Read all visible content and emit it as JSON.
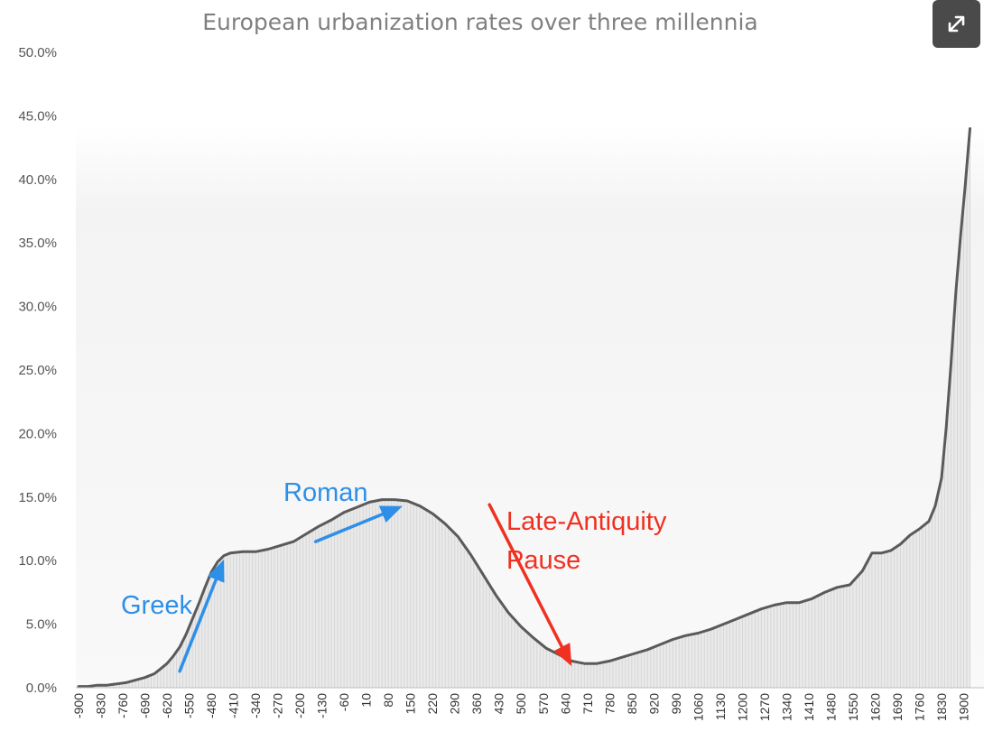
{
  "chart_data": {
    "type": "area",
    "title": "European urbanization rates over three millennia",
    "xlabel": "",
    "ylabel": "",
    "x_range": [
      -900,
      1950
    ],
    "x_step": 10,
    "xticks": [
      -900,
      -830,
      -760,
      -690,
      -620,
      -550,
      -480,
      -410,
      -340,
      -270,
      -200,
      -130,
      -60,
      10,
      80,
      150,
      220,
      290,
      360,
      430,
      500,
      570,
      640,
      710,
      780,
      850,
      920,
      990,
      1060,
      1130,
      1200,
      1270,
      1340,
      1410,
      1480,
      1550,
      1620,
      1690,
      1760,
      1830,
      1900
    ],
    "yticks": [
      "0.0%",
      "5.0%",
      "10.0%",
      "15.0%",
      "20.0%",
      "25.0%",
      "30.0%",
      "35.0%",
      "40.0%",
      "45.0%",
      "50.0%"
    ],
    "ylim": [
      0,
      50
    ],
    "grid": false,
    "legend": "none",
    "series": [
      {
        "points": [
          [
            -900,
            0.1
          ],
          [
            -870,
            0.1
          ],
          [
            -840,
            0.2
          ],
          [
            -810,
            0.2
          ],
          [
            -780,
            0.3
          ],
          [
            -750,
            0.4
          ],
          [
            -720,
            0.6
          ],
          [
            -690,
            0.8
          ],
          [
            -660,
            1.1
          ],
          [
            -640,
            1.5
          ],
          [
            -620,
            1.9
          ],
          [
            -600,
            2.5
          ],
          [
            -580,
            3.2
          ],
          [
            -560,
            4.2
          ],
          [
            -540,
            5.4
          ],
          [
            -520,
            6.6
          ],
          [
            -500,
            7.9
          ],
          [
            -480,
            9.1
          ],
          [
            -460,
            9.9
          ],
          [
            -440,
            10.4
          ],
          [
            -420,
            10.6
          ],
          [
            -380,
            10.7
          ],
          [
            -340,
            10.7
          ],
          [
            -300,
            10.9
          ],
          [
            -260,
            11.2
          ],
          [
            -220,
            11.5
          ],
          [
            -180,
            12.1
          ],
          [
            -140,
            12.7
          ],
          [
            -100,
            13.2
          ],
          [
            -60,
            13.8
          ],
          [
            -20,
            14.2
          ],
          [
            20,
            14.6
          ],
          [
            60,
            14.8
          ],
          [
            100,
            14.8
          ],
          [
            140,
            14.7
          ],
          [
            180,
            14.3
          ],
          [
            220,
            13.7
          ],
          [
            260,
            12.9
          ],
          [
            300,
            11.9
          ],
          [
            340,
            10.5
          ],
          [
            380,
            8.9
          ],
          [
            420,
            7.3
          ],
          [
            460,
            5.9
          ],
          [
            500,
            4.8
          ],
          [
            540,
            3.9
          ],
          [
            580,
            3.1
          ],
          [
            620,
            2.6
          ],
          [
            660,
            2.1
          ],
          [
            700,
            1.9
          ],
          [
            740,
            1.9
          ],
          [
            780,
            2.1
          ],
          [
            820,
            2.4
          ],
          [
            860,
            2.7
          ],
          [
            900,
            3.0
          ],
          [
            940,
            3.4
          ],
          [
            980,
            3.8
          ],
          [
            1020,
            4.1
          ],
          [
            1060,
            4.3
          ],
          [
            1100,
            4.6
          ],
          [
            1140,
            5.0
          ],
          [
            1180,
            5.4
          ],
          [
            1220,
            5.8
          ],
          [
            1260,
            6.2
          ],
          [
            1300,
            6.5
          ],
          [
            1340,
            6.7
          ],
          [
            1380,
            6.7
          ],
          [
            1420,
            7.0
          ],
          [
            1460,
            7.5
          ],
          [
            1500,
            7.9
          ],
          [
            1540,
            8.1
          ],
          [
            1580,
            9.2
          ],
          [
            1610,
            10.6
          ],
          [
            1640,
            10.6
          ],
          [
            1670,
            10.8
          ],
          [
            1700,
            11.3
          ],
          [
            1730,
            12.0
          ],
          [
            1760,
            12.5
          ],
          [
            1790,
            13.1
          ],
          [
            1810,
            14.3
          ],
          [
            1830,
            16.5
          ],
          [
            1845,
            20.5
          ],
          [
            1860,
            25.5
          ],
          [
            1875,
            31.0
          ],
          [
            1890,
            35.5
          ],
          [
            1905,
            39.5
          ],
          [
            1915,
            42.5
          ],
          [
            1920,
            44.0
          ]
        ]
      }
    ],
    "annotations": [
      {
        "text": "Greek",
        "color": "#2e8fe8",
        "arrow_from": [
          -580,
          1.3
        ],
        "arrow_to": [
          -440,
          10.1
        ]
      },
      {
        "text": "Roman",
        "color": "#2e8fe8",
        "arrow_from": [
          -150,
          11.5
        ],
        "arrow_to": [
          125,
          14.3
        ]
      },
      {
        "text": "Late-Antiquity",
        "color": "#f03020",
        "arrow_from": [
          400,
          14.4
        ],
        "arrow_to": [
          660,
          1.7
        ]
      },
      {
        "text": "Pause",
        "color": "#f03020"
      }
    ],
    "colors": {
      "line": "#5a5a5a",
      "fill_top": "#eaeaea",
      "fill_bottom": "#f8f8f8",
      "bars": "#d6d6d6",
      "axis": "#bfbfbf",
      "title": "#808080"
    }
  },
  "toolbar": {
    "expand_icon": "expand-diagonal-icon",
    "expand_bg": "#4a4a4a"
  }
}
